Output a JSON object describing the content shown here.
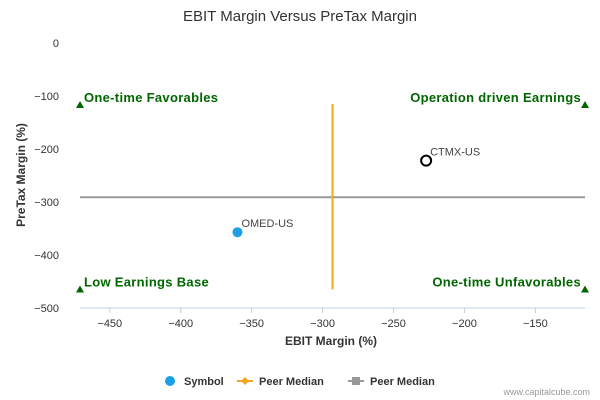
{
  "chart_data": {
    "type": "scatter",
    "title": "EBIT Margin Versus PreTax Margin",
    "xlabel": "EBIT Margin (%)",
    "ylabel": "PreTax Margin (%)",
    "xlim": [
      -471,
      -115
    ],
    "ylim": [
      -500,
      0
    ],
    "xticks": [
      -450,
      -400,
      -350,
      -300,
      -250,
      -200,
      -150
    ],
    "yticks": [
      0,
      -100,
      -200,
      -300,
      -400,
      -500
    ],
    "points": [
      {
        "label": "OMED-US",
        "x": -360,
        "y": -357,
        "style": "filled",
        "color": "#1a9fe8"
      },
      {
        "label": "CTMX-US",
        "x": -227,
        "y": -222,
        "style": "hollow",
        "color": "#000000"
      }
    ],
    "peer_median_x": -293,
    "peer_median_x_range": [
      -465,
      -115
    ],
    "peer_median_y": -291,
    "quadrants": [
      {
        "label": "One-time Favorables",
        "x": -471,
        "y": -117,
        "corner": "top-left"
      },
      {
        "label": "Operation driven Earnings",
        "x": -115,
        "y": -117,
        "corner": "top-right"
      },
      {
        "label": "Low Earnings Base",
        "x": -471,
        "y": -465,
        "corner": "bottom-left"
      },
      {
        "label": "One-time Unfavorables",
        "x": -115,
        "y": -465,
        "corner": "bottom-right"
      }
    ],
    "quadrant_color": "#006600",
    "vline_color": "#f5a623",
    "hline_color": "#999999",
    "legend": [
      {
        "label": "Symbol",
        "marker": "circle",
        "color": "#1a9fe8"
      },
      {
        "label": "Peer Median",
        "marker": "diamond-line",
        "color": "#f5a623"
      },
      {
        "label": "Peer Median",
        "marker": "square-line",
        "color": "#999999"
      }
    ],
    "legend_position": "bottom-center"
  },
  "credit": "www.capitalcube.com"
}
